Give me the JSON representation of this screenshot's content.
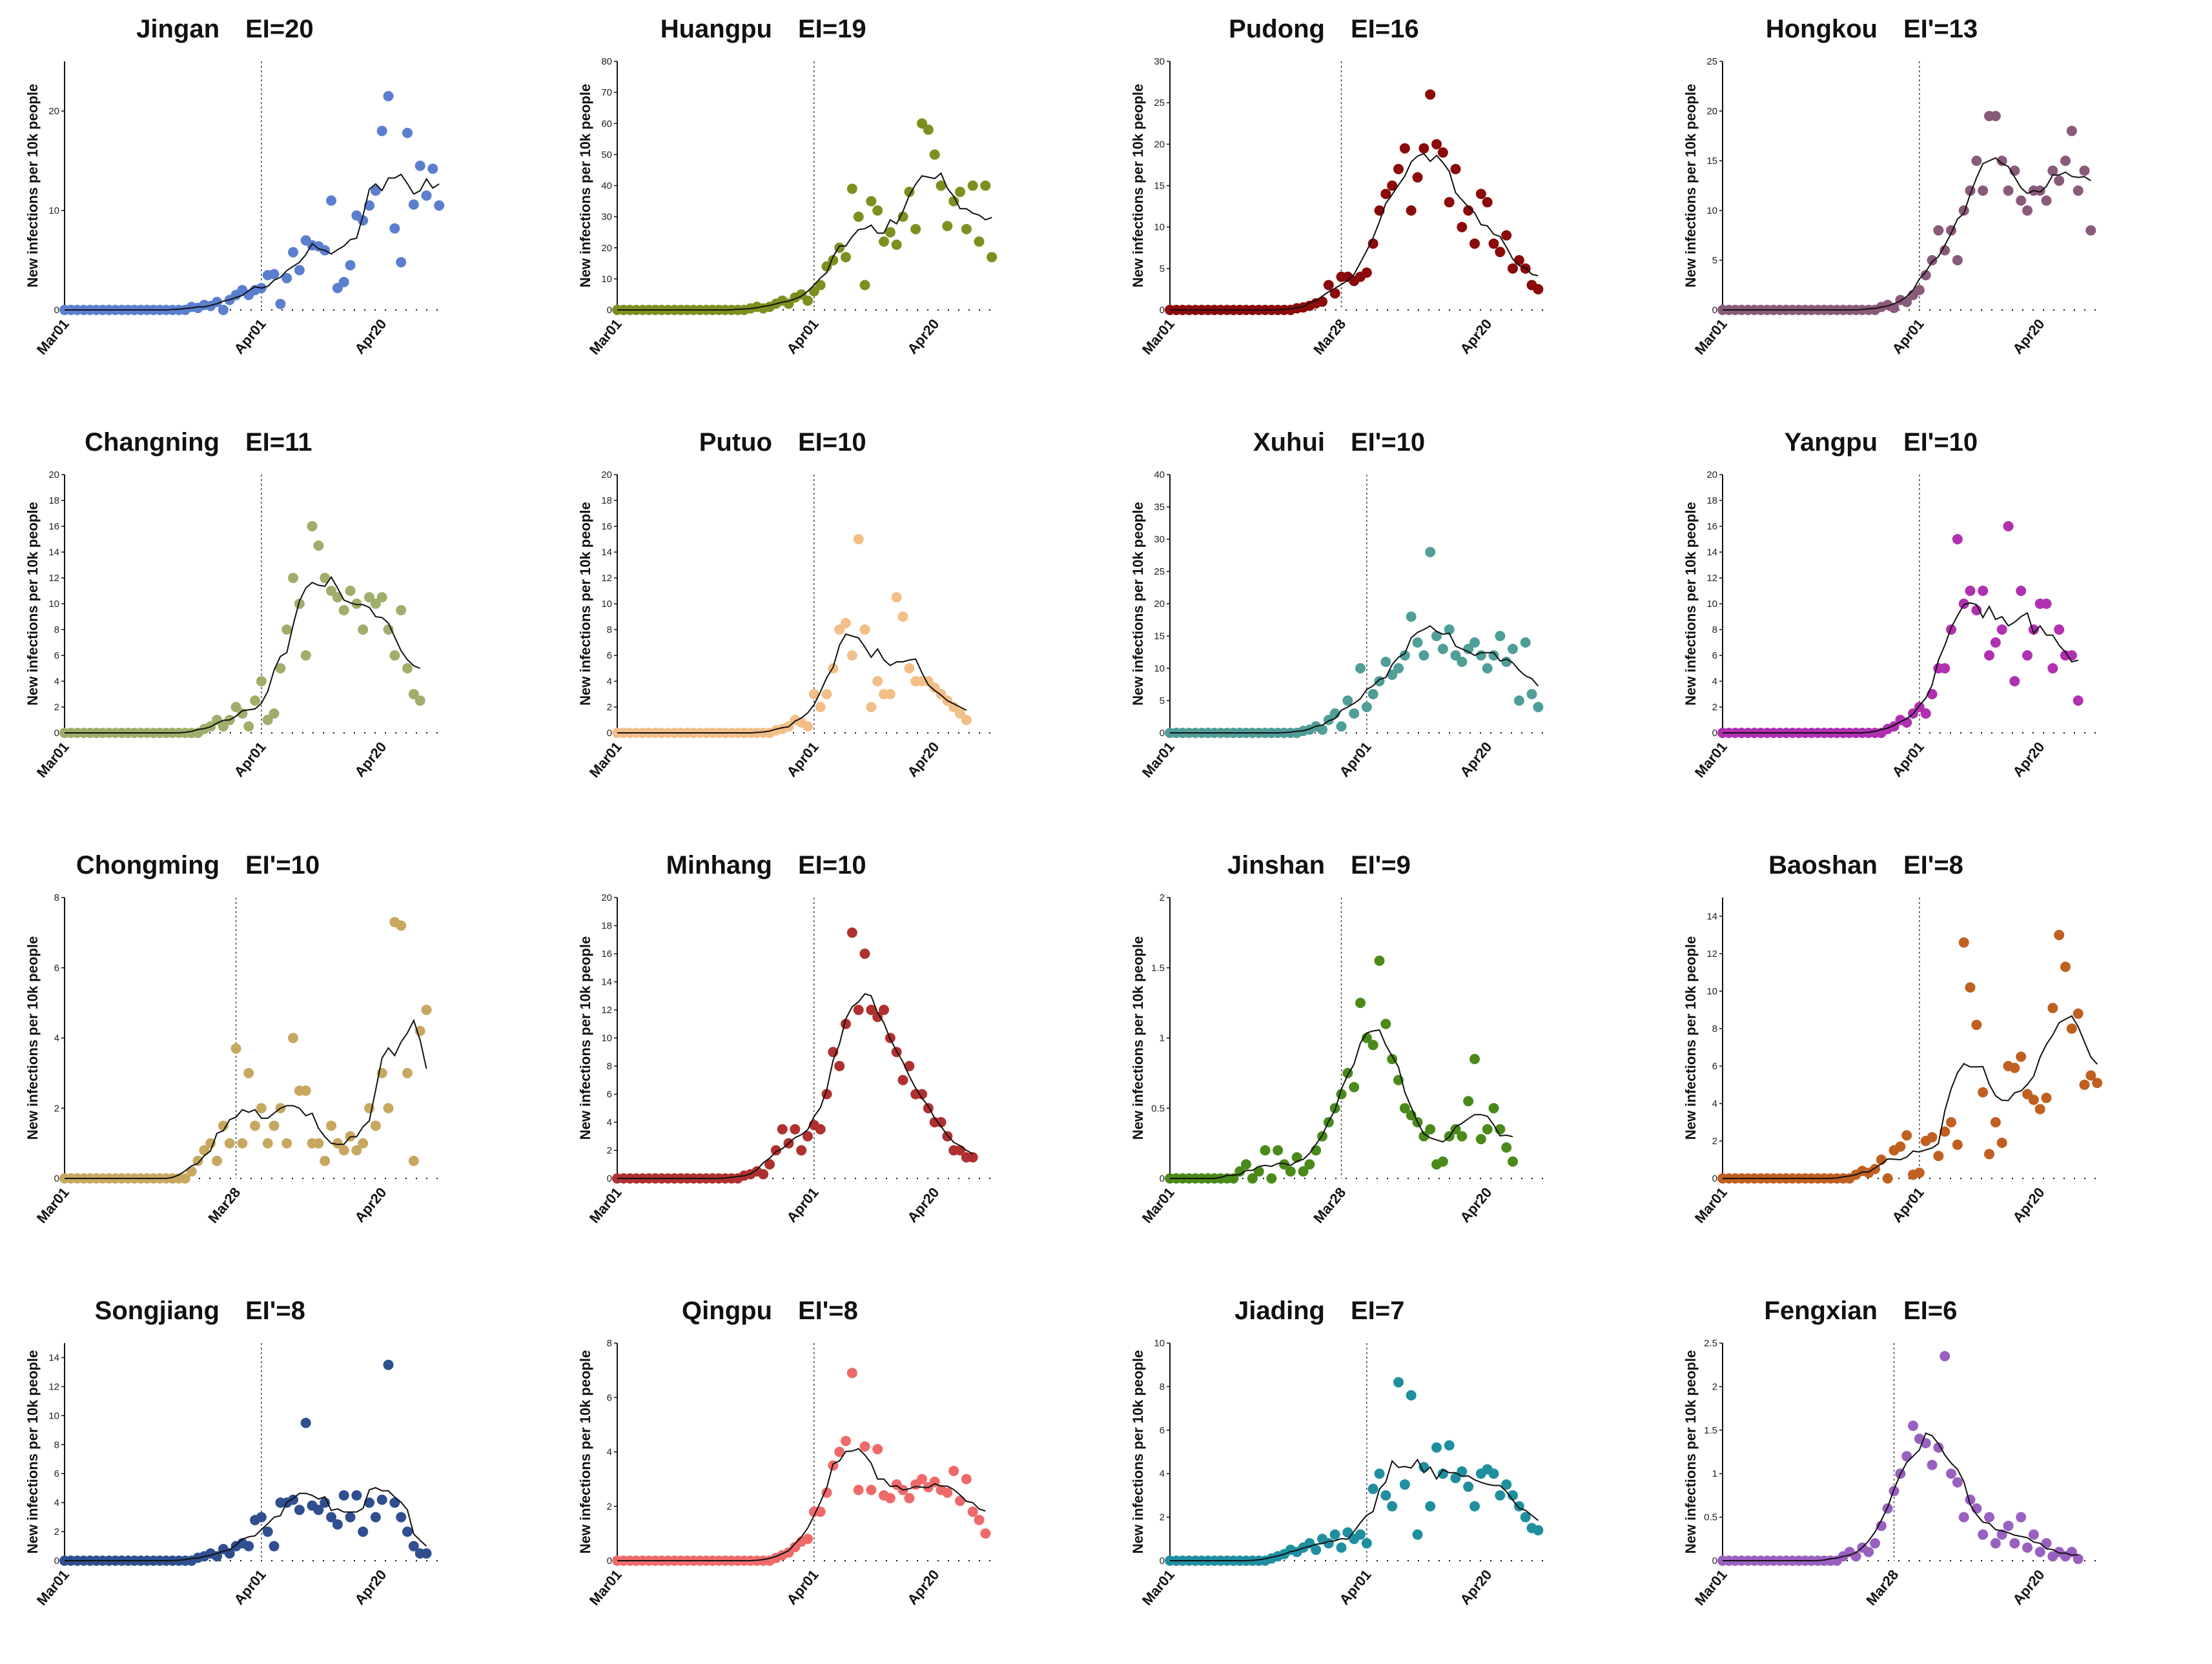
{
  "chart_data": [
    {
      "type": "scatter",
      "title_name": "Jingan",
      "title_index": "EI=20",
      "color": "#5b7fcf",
      "ylim": [
        0,
        25
      ],
      "yticks": [
        0,
        10,
        20
      ],
      "xticks": [
        {
          "day": 0,
          "label": "Mar01"
        },
        {
          "day": 31,
          "label": "Apr01"
        },
        {
          "day": 50,
          "label": "Apr20"
        }
      ],
      "vline_day": 31,
      "ylabel": "New infections per 10k people",
      "lead_zeros": 20,
      "values": [
        0.3,
        0.2,
        0.5,
        0.4,
        0.8,
        0,
        1,
        1.5,
        2,
        1.5,
        2,
        2.2,
        3.5,
        3.6,
        0.6,
        3.2,
        5.8,
        4,
        7,
        6.5,
        6.4,
        6,
        11,
        2.2,
        2.8,
        4.5,
        9.5,
        9,
        10.5,
        12,
        18,
        21.5,
        8.2,
        4.8,
        17.8,
        10.6,
        14.5,
        11.5,
        14.2,
        10.5
      ]
    },
    {
      "type": "scatter",
      "title_name": "Huangpu",
      "title_index": "EI=19",
      "color": "#7f8f1f",
      "ylim": [
        0,
        80
      ],
      "yticks": [
        0,
        10,
        20,
        30,
        40,
        50,
        60,
        70,
        80
      ],
      "xticks": [
        {
          "day": 0,
          "label": "Mar01"
        },
        {
          "day": 31,
          "label": "Apr01"
        },
        {
          "day": 50,
          "label": "Apr20"
        }
      ],
      "vline_day": 31,
      "ylabel": "New infections per 10k people",
      "lead_zeros": 21,
      "values": [
        0.5,
        1,
        0.5,
        1,
        2,
        3,
        2,
        4,
        5,
        3,
        6,
        8,
        14,
        16,
        20,
        17,
        39,
        30,
        8,
        35,
        32,
        22,
        25,
        21,
        30,
        38,
        26,
        60,
        58,
        50,
        40,
        27,
        35,
        38,
        26,
        40,
        22,
        40,
        17
      ]
    },
    {
      "type": "scatter",
      "title_name": "Pudong",
      "title_index": "EI=16",
      "color": "#8b0a0a",
      "ylim": [
        0,
        30
      ],
      "yticks": [
        0,
        5,
        10,
        15,
        20,
        25,
        30
      ],
      "xticks": [
        {
          "day": 0,
          "label": "Mar01"
        },
        {
          "day": 27,
          "label": "Mar28"
        },
        {
          "day": 50,
          "label": "Apr20"
        }
      ],
      "vline_day": 27,
      "ylabel": "New infections per 10k people",
      "lead_zeros": 20,
      "values": [
        0.2,
        0.3,
        0.5,
        0.8,
        1,
        3,
        2,
        4,
        4,
        3.5,
        4,
        4.5,
        8,
        12,
        14,
        15,
        17,
        19.5,
        12,
        16,
        19.5,
        26,
        20,
        19,
        13,
        17,
        10,
        12,
        8,
        14,
        13,
        8,
        7,
        9,
        5,
        6,
        5,
        3,
        2.5
      ]
    },
    {
      "type": "scatter",
      "title_name": "Hongkou",
      "title_index": "EI'=13",
      "color": "#8a5a7a",
      "ylim": [
        0,
        25
      ],
      "yticks": [
        0,
        5,
        10,
        15,
        20,
        25
      ],
      "xticks": [
        {
          "day": 0,
          "label": "Mar01"
        },
        {
          "day": 31,
          "label": "Apr01"
        },
        {
          "day": 50,
          "label": "Apr20"
        }
      ],
      "vline_day": 31,
      "ylabel": "New infections per 10k people",
      "lead_zeros": 25,
      "values": [
        0.3,
        0.5,
        0.2,
        1,
        0.8,
        1.5,
        2,
        3.5,
        5,
        8,
        6,
        8,
        5,
        10,
        12,
        15,
        12,
        19.5,
        19.5,
        15,
        12,
        14,
        11,
        10,
        12,
        12,
        11,
        14,
        13,
        15,
        18,
        12,
        14,
        8
      ]
    },
    {
      "type": "scatter",
      "title_name": "Changning",
      "title_index": "EI=11",
      "color": "#9fae6a",
      "ylim": [
        0,
        20
      ],
      "yticks": [
        0,
        2,
        4,
        6,
        8,
        10,
        12,
        14,
        16,
        18,
        20
      ],
      "xticks": [
        {
          "day": 0,
          "label": "Mar01"
        },
        {
          "day": 31,
          "label": "Apr01"
        },
        {
          "day": 50,
          "label": "Apr20"
        }
      ],
      "vline_day": 31,
      "ylabel": "New infections per 10k people",
      "lead_zeros": 22,
      "values": [
        0.3,
        0.5,
        1,
        0.5,
        1,
        2,
        1.5,
        0.5,
        2.5,
        4,
        1,
        1.5,
        5,
        8,
        12,
        10,
        6,
        16,
        14.5,
        12,
        11,
        10.5,
        9.5,
        11,
        10,
        8,
        10.5,
        10,
        10.5,
        8,
        6,
        9.5,
        5,
        3,
        2.5
      ]
    },
    {
      "type": "scatter",
      "title_name": "Putuo",
      "title_index": "EI=10",
      "color": "#f2bf88",
      "ylim": [
        0,
        20
      ],
      "yticks": [
        0,
        2,
        4,
        6,
        8,
        10,
        12,
        14,
        16,
        18,
        20
      ],
      "xticks": [
        {
          "day": 0,
          "label": "Mar01"
        },
        {
          "day": 31,
          "label": "Apr01"
        },
        {
          "day": 50,
          "label": "Apr20"
        }
      ],
      "vline_day": 31,
      "ylabel": "New infections per 10k people",
      "lead_zeros": 25,
      "values": [
        0.2,
        0.3,
        0.5,
        1,
        0.8,
        0.5,
        3,
        2,
        3,
        5,
        8,
        8.5,
        6,
        15,
        8,
        2,
        4,
        3,
        3,
        10.5,
        9,
        5,
        4,
        4,
        4,
        3.5,
        3,
        2.5,
        2,
        1.5,
        1
      ]
    },
    {
      "type": "scatter",
      "title_name": "Xuhui",
      "title_index": "EI'=10",
      "color": "#4f9e98",
      "ylim": [
        0,
        40
      ],
      "yticks": [
        0,
        5,
        10,
        15,
        20,
        25,
        30,
        35,
        40
      ],
      "xticks": [
        {
          "day": 0,
          "label": "Mar01"
        },
        {
          "day": 31,
          "label": "Apr01"
        },
        {
          "day": 50,
          "label": "Apr20"
        }
      ],
      "vline_day": 31,
      "ylabel": "New infections per 10k people",
      "lead_zeros": 21,
      "values": [
        0.3,
        0.5,
        1,
        0.5,
        2,
        3,
        1,
        5,
        3,
        10,
        4,
        6,
        8,
        11,
        9,
        10,
        12,
        18,
        14,
        12,
        28,
        15,
        13,
        16,
        12,
        11,
        13,
        14,
        12,
        10,
        12,
        15,
        11,
        13,
        5,
        14,
        6,
        4
      ]
    },
    {
      "type": "scatter",
      "title_name": "Yangpu",
      "title_index": "EI'=10",
      "color": "#b030b0",
      "ylim": [
        0,
        20
      ],
      "yticks": [
        0,
        2,
        4,
        6,
        8,
        10,
        12,
        14,
        16,
        18,
        20
      ],
      "xticks": [
        {
          "day": 0,
          "label": "Mar01"
        },
        {
          "day": 31,
          "label": "Apr01"
        },
        {
          "day": 50,
          "label": "Apr20"
        }
      ],
      "vline_day": 31,
      "ylabel": "New infections per 10k people",
      "lead_zeros": 26,
      "values": [
        0.3,
        0.5,
        1,
        0.8,
        1.5,
        2,
        1.5,
        3,
        5,
        5,
        8,
        15,
        10,
        11,
        9.5,
        11,
        6,
        7,
        8,
        16,
        4,
        11,
        6,
        8,
        10,
        10,
        5,
        8,
        6,
        6,
        2.5
      ]
    },
    {
      "type": "scatter",
      "title_name": "Chongming",
      "title_index": "EI'=10",
      "color": "#c8a860",
      "ylim": [
        0,
        8
      ],
      "yticks": [
        0,
        2,
        4,
        6,
        8
      ],
      "xticks": [
        {
          "day": 0,
          "label": "Mar01"
        },
        {
          "day": 27,
          "label": "Mar28"
        },
        {
          "day": 50,
          "label": "Apr20"
        }
      ],
      "vline_day": 27,
      "ylabel": "New infections per 10k people",
      "lead_zeros": 20,
      "values": [
        0.2,
        0.5,
        0.8,
        1,
        0.5,
        1.5,
        1,
        3.7,
        1,
        3,
        1.5,
        2,
        1,
        1.5,
        2,
        1,
        4,
        2.5,
        2.5,
        1,
        1,
        0.5,
        1.5,
        1,
        0.8,
        1.2,
        0.8,
        1,
        2,
        1.5,
        3,
        2,
        7.3,
        7.2,
        3,
        0.5,
        4.2,
        4.8
      ]
    },
    {
      "type": "scatter",
      "title_name": "Minhang",
      "title_index": "EI=10",
      "color": "#b03030",
      "ylim": [
        0,
        20
      ],
      "yticks": [
        0,
        2,
        4,
        6,
        8,
        10,
        12,
        14,
        16,
        18,
        20
      ],
      "xticks": [
        {
          "day": 0,
          "label": "Mar01"
        },
        {
          "day": 31,
          "label": "Apr01"
        },
        {
          "day": 50,
          "label": "Apr20"
        }
      ],
      "vline_day": 31,
      "ylabel": "New infections per 10k people",
      "lead_zeros": 20,
      "values": [
        0.2,
        0.3,
        0.5,
        0.3,
        1,
        2,
        3.5,
        2.5,
        3.5,
        2,
        3,
        3.8,
        3.5,
        6,
        9,
        8,
        11,
        17.5,
        12,
        16,
        12,
        11.5,
        12,
        10,
        9,
        7,
        8,
        6,
        6,
        5,
        4,
        4,
        3,
        2,
        2,
        1.5,
        1.5
      ]
    },
    {
      "type": "scatter",
      "title_name": "Jinshan",
      "title_index": "EI'=9",
      "color": "#4a8a1a",
      "ylim": [
        0,
        2
      ],
      "yticks": [
        0,
        0.5,
        1,
        1.5,
        2
      ],
      "xticks": [
        {
          "day": 0,
          "label": "Mar01"
        },
        {
          "day": 27,
          "label": "Mar28"
        },
        {
          "day": 50,
          "label": "Apr20"
        }
      ],
      "vline_day": 27,
      "ylabel": "New infections per 10k people",
      "lead_zeros": 11,
      "values": [
        0.05,
        0.1,
        0,
        0.05,
        0.2,
        0,
        0.2,
        0.1,
        0.05,
        0.15,
        0.05,
        0.1,
        0.2,
        0.3,
        0.4,
        0.5,
        0.6,
        0.75,
        0.65,
        1.25,
        1,
        0.95,
        1.55,
        1.1,
        0.85,
        0.7,
        0.5,
        0.45,
        0.4,
        0.3,
        0.35,
        0.1,
        0.12,
        0.3,
        0.35,
        0.3,
        0.55,
        0.85,
        0.28,
        0.35,
        0.5,
        0.35,
        0.22,
        0.12
      ]
    },
    {
      "type": "scatter",
      "title_name": "Baoshan",
      "title_index": "EI'=8",
      "color": "#c06020",
      "ylim": [
        0,
        15
      ],
      "yticks": [
        0,
        2,
        4,
        6,
        8,
        10,
        12,
        14
      ],
      "xticks": [
        {
          "day": 0,
          "label": "Mar01"
        },
        {
          "day": 31,
          "label": "Apr01"
        },
        {
          "day": 50,
          "label": "Apr20"
        }
      ],
      "vline_day": 31,
      "ylabel": "New infections per 10k people",
      "lead_zeros": 21,
      "values": [
        0.2,
        0.4,
        0.3,
        0.5,
        1,
        0,
        1.5,
        1.7,
        2.3,
        0.2,
        0.3,
        2,
        2.2,
        1.2,
        2.5,
        3,
        1.8,
        12.6,
        10.2,
        8.2,
        4.6,
        1.3,
        3,
        1.9,
        6,
        5.9,
        6.5,
        4.5,
        4.2,
        3.7,
        4.3,
        9.1,
        13,
        11.3,
        8,
        8.8,
        5,
        5.5,
        5.1
      ]
    },
    {
      "type": "scatter",
      "title_name": "Songjiang",
      "title_index": "EI'=8",
      "color": "#2f4f8f",
      "ylim": [
        0,
        15
      ],
      "yticks": [
        0,
        2,
        4,
        6,
        8,
        10,
        12,
        14
      ],
      "xticks": [
        {
          "day": 0,
          "label": "Mar01"
        },
        {
          "day": 31,
          "label": "Apr01"
        },
        {
          "day": 50,
          "label": "Apr20"
        }
      ],
      "vline_day": 31,
      "ylabel": "New infections per 10k people",
      "lead_zeros": 21,
      "values": [
        0.2,
        0.3,
        0.5,
        0.3,
        0.8,
        0.5,
        1,
        1.2,
        1,
        2.8,
        3,
        2,
        1,
        4,
        4,
        4.2,
        3.5,
        9.5,
        3.8,
        3.5,
        4,
        3,
        2.5,
        4.5,
        3,
        4.5,
        2,
        4,
        3,
        4.2,
        13.5,
        4,
        3,
        2,
        1,
        0.5,
        0.5
      ]
    },
    {
      "type": "scatter",
      "title_name": "Qingpu",
      "title_index": "EI'=8",
      "color": "#ee6a6a",
      "ylim": [
        0,
        8
      ],
      "yticks": [
        0,
        2,
        4,
        6,
        8
      ],
      "xticks": [
        {
          "day": 0,
          "label": "Mar01"
        },
        {
          "day": 31,
          "label": "Apr01"
        },
        {
          "day": 50,
          "label": "Apr20"
        }
      ],
      "vline_day": 31,
      "ylabel": "New infections per 10k people",
      "lead_zeros": 25,
      "values": [
        0.1,
        0.2,
        0.3,
        0.5,
        0.7,
        0.8,
        1.8,
        1.8,
        2.5,
        3.5,
        4,
        4.4,
        6.9,
        2.6,
        4.2,
        2.6,
        4.1,
        2.4,
        2.3,
        2.8,
        2.6,
        2.3,
        2.8,
        3,
        2.7,
        2.9,
        2.6,
        2.5,
        3.3,
        2.2,
        3,
        1.8,
        1.5,
        1
      ]
    },
    {
      "type": "scatter",
      "title_name": "Jiading",
      "title_index": "EI=7",
      "color": "#1f8fa0",
      "ylim": [
        0,
        10
      ],
      "yticks": [
        0,
        2,
        4,
        6,
        8,
        10
      ],
      "xticks": [
        {
          "day": 0,
          "label": "Mar01"
        },
        {
          "day": 31,
          "label": "Apr01"
        },
        {
          "day": 50,
          "label": "Apr20"
        }
      ],
      "vline_day": 31,
      "ylabel": "New infections per 10k people",
      "lead_zeros": 16,
      "values": [
        0.1,
        0.2,
        0.3,
        0.5,
        0.4,
        0.6,
        0.8,
        0.5,
        1,
        0.8,
        1.2,
        0.6,
        1.3,
        1,
        1.2,
        0.8,
        3.3,
        4,
        3,
        2.5,
        8.2,
        3.5,
        7.6,
        1.2,
        4.3,
        2.5,
        5.2,
        4,
        5.3,
        3.8,
        4.1,
        3.4,
        2.5,
        4,
        4.2,
        4,
        3,
        3.5,
        3,
        2.5,
        2,
        1.5,
        1.4
      ]
    },
    {
      "type": "scatter",
      "title_name": "Fengxian",
      "title_index": "EI=6",
      "color": "#9a60c0",
      "ylim": [
        0,
        2.5
      ],
      "yticks": [
        0,
        0.5,
        1,
        1.5,
        2,
        2.5
      ],
      "xticks": [
        {
          "day": 0,
          "label": "Mar01"
        },
        {
          "day": 27,
          "label": "Mar28"
        },
        {
          "day": 50,
          "label": "Apr20"
        }
      ],
      "vline_day": 27,
      "ylabel": "New infections per 10k people",
      "lead_zeros": 19,
      "values": [
        0.05,
        0.1,
        0.05,
        0.15,
        0.1,
        0.2,
        0.4,
        0.6,
        0.8,
        1,
        1.2,
        1.55,
        1.4,
        1.35,
        1.1,
        1.3,
        2.35,
        1,
        0.9,
        0.5,
        0.7,
        0.6,
        0.3,
        0.5,
        0.2,
        0.3,
        0.4,
        0.2,
        0.5,
        0.15,
        0.3,
        0.1,
        0.2,
        0.05,
        0.1,
        0.05,
        0.1,
        0.02
      ]
    }
  ]
}
